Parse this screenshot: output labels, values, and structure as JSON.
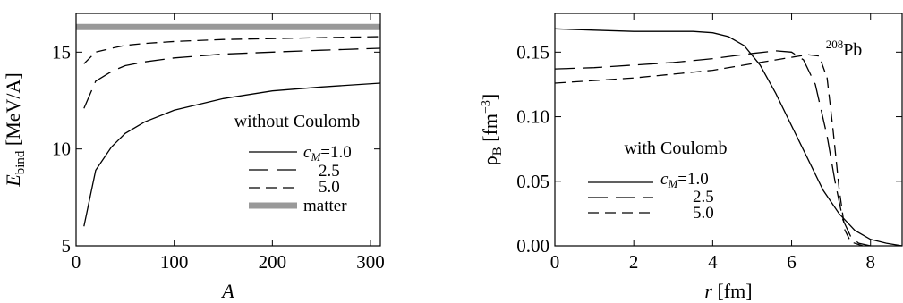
{
  "chart_data": [
    {
      "type": "line",
      "title": "",
      "xlabel": "A",
      "ylabel": {
        "main": "E",
        "sub": "bind",
        "unit": " [MeV/A]"
      },
      "xlim": [
        0,
        310
      ],
      "ylim": [
        5,
        17
      ],
      "xticks": [
        0,
        100,
        200,
        300
      ],
      "yticks": [
        5,
        10,
        15
      ],
      "annotation": "without Coulomb",
      "legend_placement": "center-right",
      "series": [
        {
          "name": "c_M=1.0",
          "style": "solid",
          "color": "#000000",
          "x": [
            8,
            20,
            36,
            50,
            70,
            100,
            150,
            200,
            250,
            310
          ],
          "y": [
            6.0,
            8.9,
            10.1,
            10.8,
            11.4,
            12.0,
            12.6,
            13.0,
            13.2,
            13.4
          ]
        },
        {
          "name": "2.5",
          "style": "longdash",
          "color": "#000000",
          "x": [
            8,
            20,
            36,
            50,
            70,
            100,
            150,
            200,
            250,
            310
          ],
          "y": [
            12.1,
            13.5,
            14.0,
            14.3,
            14.5,
            14.7,
            14.9,
            15.0,
            15.1,
            15.2
          ]
        },
        {
          "name": "5.0",
          "style": "dash",
          "color": "#000000",
          "x": [
            8,
            20,
            36,
            50,
            70,
            100,
            150,
            200,
            250,
            310
          ],
          "y": [
            14.4,
            15.0,
            15.2,
            15.35,
            15.45,
            15.55,
            15.65,
            15.7,
            15.75,
            15.8
          ]
        },
        {
          "name": "matter",
          "style": "thick",
          "color": "#999999",
          "x": [
            0,
            310
          ],
          "y": [
            16.3,
            16.3
          ]
        }
      ]
    },
    {
      "type": "line",
      "title": "",
      "xlabel": "r [fm]",
      "ylabel": {
        "main": "ρ",
        "sub": "B",
        "unit": " [fm",
        "sup": "−3",
        "unit_end": "]"
      },
      "xlim": [
        0,
        8.8
      ],
      "ylim": [
        0,
        0.18
      ],
      "xticks": [
        0,
        2,
        4,
        6,
        8
      ],
      "yticks": [
        0.0,
        0.05,
        0.1,
        0.15
      ],
      "ytick_labels": [
        "0.00",
        "0.05",
        "0.10",
        "0.15"
      ],
      "annotation": "with Coulomb",
      "nucleus_label": {
        "sup": "208",
        "main": "Pb"
      },
      "legend_placement": "lower-left",
      "series": [
        {
          "name": "c_M=1.0",
          "style": "solid",
          "color": "#000000",
          "x": [
            0,
            1,
            2,
            3,
            3.5,
            4,
            4.4,
            4.8,
            5.2,
            5.6,
            6.0,
            6.4,
            6.8,
            7.2,
            7.6,
            8.0,
            8.4,
            8.8
          ],
          "y": [
            0.168,
            0.167,
            0.166,
            0.166,
            0.166,
            0.165,
            0.162,
            0.155,
            0.14,
            0.118,
            0.093,
            0.068,
            0.043,
            0.025,
            0.012,
            0.005,
            0.002,
            0.0
          ]
        },
        {
          "name": "2.5",
          "style": "longdash",
          "color": "#000000",
          "x": [
            0,
            1,
            2,
            3,
            4,
            5,
            5.6,
            6.0,
            6.3,
            6.6,
            6.9,
            7.1,
            7.3,
            7.5,
            7.7,
            8.0
          ],
          "y": [
            0.137,
            0.138,
            0.14,
            0.142,
            0.145,
            0.149,
            0.151,
            0.15,
            0.144,
            0.125,
            0.085,
            0.05,
            0.02,
            0.007,
            0.002,
            0.0
          ]
        },
        {
          "name": "5.0",
          "style": "dash",
          "color": "#000000",
          "x": [
            0,
            1,
            2,
            3,
            4,
            5,
            6.0,
            6.4,
            6.7,
            6.9,
            7.05,
            7.2,
            7.35,
            7.5,
            7.8
          ],
          "y": [
            0.126,
            0.128,
            0.13,
            0.133,
            0.136,
            0.141,
            0.146,
            0.148,
            0.147,
            0.13,
            0.09,
            0.045,
            0.012,
            0.003,
            0.0
          ]
        }
      ]
    }
  ]
}
